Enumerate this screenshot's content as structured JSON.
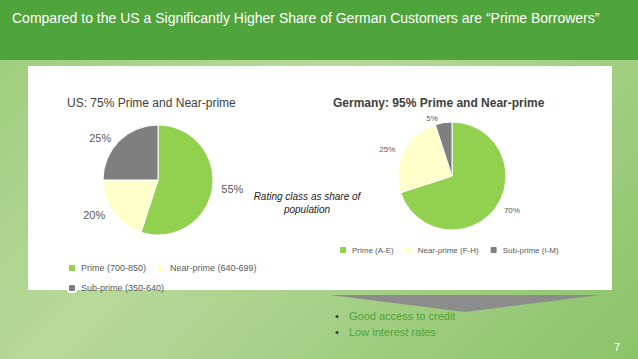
{
  "title": "Compared to the US a Significantly Higher Share of German Customers are “Prime Borrowers”",
  "chart_data": [
    {
      "type": "pie",
      "title": "US: 75% Prime and Near-prime",
      "categories": [
        "Prime (700-850)",
        "Near-prime (640-699)",
        "Sub-prime (350-640)"
      ],
      "values": [
        55,
        20,
        25
      ],
      "value_labels": [
        "55%",
        "20%",
        "25%"
      ],
      "colors": [
        "#92d050",
        "#ffffcc",
        "#7f7f7f"
      ],
      "data_labels": true,
      "legend": "bottom"
    },
    {
      "type": "pie",
      "title": "Germany: 95% Prime and Near-prime",
      "categories": [
        "Prime (A-E)",
        "Near-prime (F-H)",
        "Sub-prime (I-M)"
      ],
      "values": [
        70,
        25,
        5
      ],
      "value_labels": [
        "70%",
        "25%",
        "5%"
      ],
      "colors": [
        "#92d050",
        "#ffffcc",
        "#7f7f7f"
      ],
      "data_labels": true,
      "legend": "bottom"
    }
  ],
  "annotation": "Rating class as share of population",
  "bullets": [
    "Good access to credit",
    "Low interest rates"
  ],
  "page_number": "7"
}
